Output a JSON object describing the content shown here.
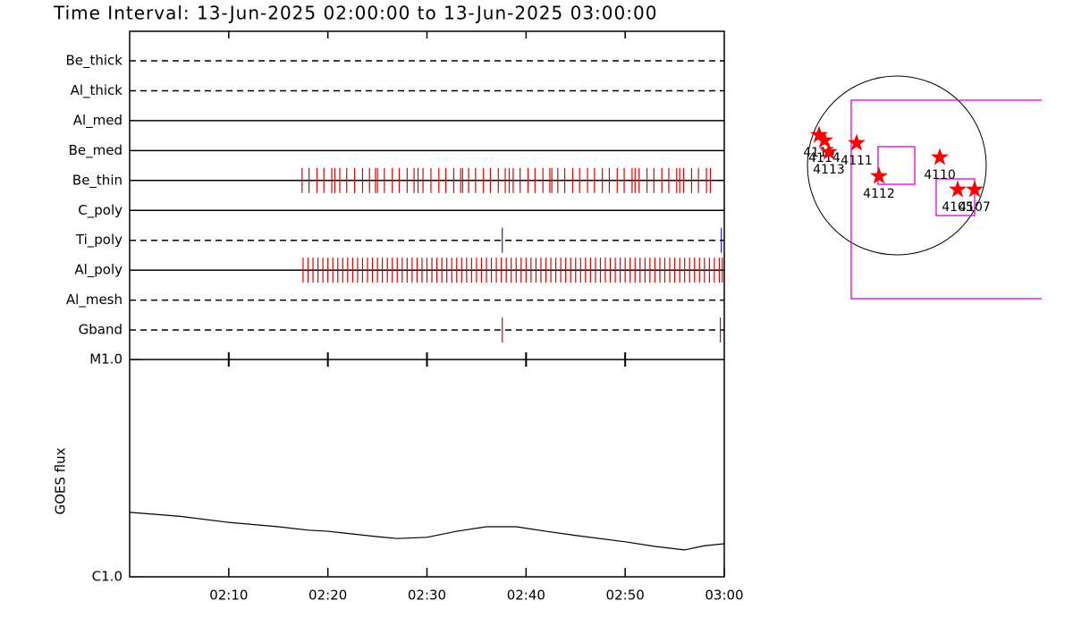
{
  "chart_data": [
    {
      "type": "timeline",
      "title": "Time Interval: 13-Jun-2025 02:00:00 to 13-Jun-2025 03:00:00",
      "xlim": [
        0,
        60
      ],
      "xticks": [
        10,
        20,
        30,
        40,
        50
      ],
      "rows": [
        {
          "name": "Be_thick",
          "style": "dashed",
          "events": []
        },
        {
          "name": "Al_thick",
          "style": "dashed",
          "events": []
        },
        {
          "name": "Al_med",
          "style": "solid",
          "events": []
        },
        {
          "name": "Be_med",
          "style": "solid",
          "events": []
        },
        {
          "name": "Be_thin",
          "style": "solid",
          "color": "#e00000",
          "events": [
            17.4,
            18.1,
            18.9,
            19.6,
            20.4,
            20.7,
            21.2,
            21.9,
            22.7,
            23.5,
            24.2,
            24.8,
            25.0,
            25.7,
            26.5,
            27.2,
            28.0,
            28.7,
            29.1,
            29.6,
            30.4,
            31.2,
            31.9,
            32.7,
            33.4,
            33.6,
            34.2,
            34.9,
            35.7,
            36.4,
            37.2,
            37.9,
            38.3,
            38.7,
            39.4,
            40.2,
            40.9,
            41.7,
            42.4,
            42.6,
            43.2,
            43.9,
            44.7,
            45.4,
            46.2,
            46.9,
            47.7,
            48.4,
            49.2,
            49.9,
            50.7,
            51.0,
            51.4,
            52.2,
            52.9,
            53.7,
            54.4,
            55.2,
            55.5,
            55.9,
            56.7,
            57.4,
            58.2,
            58.6
          ]
        },
        {
          "name": "C_poly",
          "style": "solid",
          "events": []
        },
        {
          "name": "Ti_poly",
          "style": "dashed",
          "color": "#2020d0",
          "events": [
            37.6,
            59.7
          ]
        },
        {
          "name": "Al_poly",
          "style": "solid",
          "color": "#e00000",
          "events": [
            17.5,
            18.0,
            18.5,
            19.0,
            19.5,
            20.0,
            20.5,
            21.0,
            21.5,
            22.0,
            22.5,
            23.0,
            23.5,
            24.0,
            24.5,
            25.0,
            25.5,
            26.0,
            26.5,
            27.0,
            27.5,
            28.0,
            28.5,
            29.0,
            29.5,
            30.0,
            30.5,
            31.0,
            31.5,
            32.0,
            32.5,
            33.0,
            33.5,
            34.0,
            34.5,
            35.0,
            35.5,
            36.0,
            36.5,
            37.0,
            37.5,
            38.0,
            38.5,
            39.0,
            39.5,
            40.0,
            40.5,
            41.0,
            41.5,
            42.0,
            42.5,
            43.0,
            43.5,
            44.0,
            44.5,
            45.0,
            45.5,
            46.0,
            46.5,
            47.0,
            47.5,
            48.0,
            48.5,
            49.0,
            49.5,
            50.0,
            50.5,
            51.0,
            51.5,
            52.0,
            52.5,
            53.0,
            53.5,
            54.0,
            54.5,
            55.0,
            55.5,
            56.0,
            56.5,
            57.0,
            57.5,
            58.0,
            58.5,
            59.0,
            59.5,
            59.8
          ]
        },
        {
          "name": "Al_mesh",
          "style": "dashed",
          "events": []
        },
        {
          "name": "Gband",
          "style": "dashed",
          "color": "#e00000",
          "events": [
            37.6,
            59.6
          ]
        }
      ]
    },
    {
      "type": "line",
      "ylabel": "GOES flux",
      "color": "#000000",
      "log": true,
      "x": [
        0,
        5,
        10,
        15,
        18,
        20,
        25,
        27,
        30,
        33,
        36,
        39,
        42,
        45,
        50,
        53,
        56,
        58,
        60
      ],
      "values": [
        1.98e-06,
        1.9e-06,
        1.78e-06,
        1.7e-06,
        1.64e-06,
        1.62e-06,
        1.53e-06,
        1.5e-06,
        1.52e-06,
        1.62e-06,
        1.7e-06,
        1.7e-06,
        1.62e-06,
        1.55e-06,
        1.45e-06,
        1.38e-06,
        1.33e-06,
        1.39e-06,
        1.42e-06
      ],
      "xlim": [
        0,
        60
      ],
      "xticks": [
        {
          "value": 10,
          "label": "02:10"
        },
        {
          "value": 20,
          "label": "02:20"
        },
        {
          "value": 30,
          "label": "02:30"
        },
        {
          "value": 40,
          "label": "02:40"
        },
        {
          "value": 50,
          "label": "02:50"
        },
        {
          "value": 60,
          "label": "03:00"
        }
      ],
      "ylim": [
        1e-06,
        1e-05
      ],
      "yticks": [
        {
          "value": 1e-06,
          "label": "C1.0"
        },
        {
          "value": 1e-05,
          "label": "M1.0"
        }
      ]
    },
    {
      "type": "scatter",
      "disk_radius": 960,
      "color": "#ff0000",
      "box_color": "#dd00dd",
      "x": [
        -835,
        -778,
        -730,
        -432,
        -192,
        461,
        653,
        835
      ],
      "y": [
        326,
        269,
        144,
        240,
        -115,
        86,
        -259,
        -259
      ],
      "labels": [
        "4115",
        "4114",
        "4113",
        "4111",
        "4112",
        "4110",
        "4105",
        "4107"
      ],
      "boxes": [
        {
          "x": [
            -490,
            1750
          ],
          "y": [
            701,
            -1430
          ]
        },
        {
          "x": [
            -202,
            192
          ],
          "y": [
            202,
            -202
          ]
        },
        {
          "x": [
            422,
            835
          ],
          "y": [
            -144,
            -538
          ]
        }
      ]
    }
  ]
}
